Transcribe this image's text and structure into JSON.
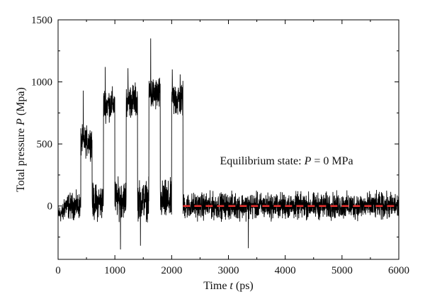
{
  "chart_data": {
    "type": "line",
    "title": "",
    "xlabel": {
      "prefix": "Time ",
      "var": "t",
      "suffix": " (ps)"
    },
    "ylabel": {
      "prefix": "Total pressure ",
      "var": "P",
      "suffix": " (Mpa)"
    },
    "xlim": [
      0,
      6000
    ],
    "ylim": [
      -430,
      1500
    ],
    "xticks": [
      0,
      1000,
      2000,
      3000,
      4000,
      5000,
      6000
    ],
    "yticks": [
      0,
      500,
      1000,
      1500
    ],
    "grid": false,
    "legend": "none",
    "annotation": {
      "prefix": "Equilibrium state: ",
      "var": "P",
      "suffix": " = 0 MPa",
      "x": 2850,
      "y": 335
    },
    "series": [
      {
        "description": "fluctuating pressure signal, piecewise regime (t_start, t_end, mean, amplitude)",
        "color": "#000000",
        "segments": [
          [
            0,
            100,
            -60,
            90
          ],
          [
            100,
            400,
            0,
            130
          ],
          [
            400,
            600,
            520,
            150
          ],
          [
            600,
            800,
            30,
            180
          ],
          [
            800,
            1000,
            820,
            160
          ],
          [
            1000,
            1200,
            60,
            190
          ],
          [
            1200,
            1400,
            850,
            170
          ],
          [
            1400,
            1600,
            50,
            190
          ],
          [
            1600,
            1800,
            900,
            170
          ],
          [
            1800,
            2000,
            40,
            200
          ],
          [
            2000,
            2200,
            860,
            190
          ],
          [
            2200,
            6000,
            0,
            130
          ]
        ],
        "spikes": [
          [
            445,
            930
          ],
          [
            830,
            1120
          ],
          [
            1230,
            1110
          ],
          [
            1630,
            1350
          ],
          [
            2010,
            1100
          ],
          [
            2150,
            1060
          ],
          [
            3350,
            -340
          ],
          [
            1100,
            -350
          ],
          [
            1450,
            -320
          ]
        ]
      },
      {
        "name": "P = 0 reference",
        "color": "#e0302d",
        "style": "dashed",
        "x": [
          2200,
          6000
        ],
        "y": [
          0,
          0
        ]
      }
    ]
  }
}
